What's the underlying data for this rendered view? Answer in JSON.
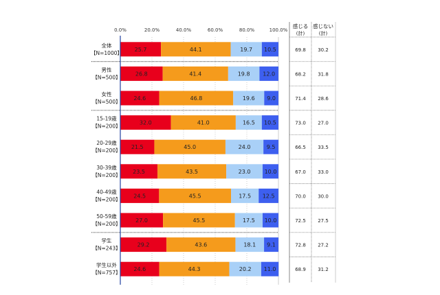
{
  "chart_data": {
    "type": "bar",
    "orientation": "horizontal-stacked-100",
    "xlim": [
      0,
      100
    ],
    "x_ticks": [
      "0.0%",
      "20.0%",
      "40.0%",
      "60.0%",
      "80.0%",
      "100.0%"
    ],
    "categories": [
      [
        "全体",
        "【N=1000】"
      ],
      [
        "男性",
        "【N=500】"
      ],
      [
        "女性",
        "【N=500】"
      ],
      [
        "15-19歳",
        "【N=200】"
      ],
      [
        "20-29歳",
        "【N=200】"
      ],
      [
        "30-39歳",
        "【N=200】"
      ],
      [
        "40-49歳",
        "【N=200】"
      ],
      [
        "50-59歳",
        "【N=200】"
      ],
      [
        "学生",
        "【N=243】"
      ],
      [
        "学生以外",
        "【N=757】"
      ]
    ],
    "series": [
      {
        "color": "#e8001c",
        "values": [
          25.7,
          26.8,
          24.6,
          32.0,
          21.5,
          23.5,
          24.5,
          27.0,
          29.2,
          24.6
        ]
      },
      {
        "color": "#f59b1c",
        "values": [
          44.1,
          41.4,
          46.8,
          41.0,
          45.0,
          43.5,
          45.5,
          45.5,
          43.6,
          44.3
        ]
      },
      {
        "color": "#a9d0f7",
        "values": [
          19.7,
          19.8,
          19.6,
          16.5,
          24.0,
          23.0,
          17.5,
          17.5,
          18.1,
          20.2
        ]
      },
      {
        "color": "#3d5fef",
        "values": [
          10.5,
          12.0,
          9.0,
          10.5,
          9.5,
          10.0,
          12.5,
          10.0,
          9.1,
          11.0
        ]
      }
    ],
    "table": {
      "headers": [
        [
          "感じる",
          "(計)"
        ],
        [
          "感じない",
          "(計)"
        ]
      ],
      "rows": [
        [
          "69.8",
          "30.2"
        ],
        [
          "68.2",
          "31.8"
        ],
        [
          "71.4",
          "28.6"
        ],
        [
          "73.0",
          "27.0"
        ],
        [
          "66.5",
          "33.5"
        ],
        [
          "67.0",
          "33.0"
        ],
        [
          "70.0",
          "30.0"
        ],
        [
          "72.5",
          "27.5"
        ],
        [
          "72.8",
          "27.2"
        ],
        [
          "68.9",
          "31.2"
        ]
      ]
    },
    "grid": true,
    "separators_after": [
      0,
      2,
      7
    ]
  }
}
